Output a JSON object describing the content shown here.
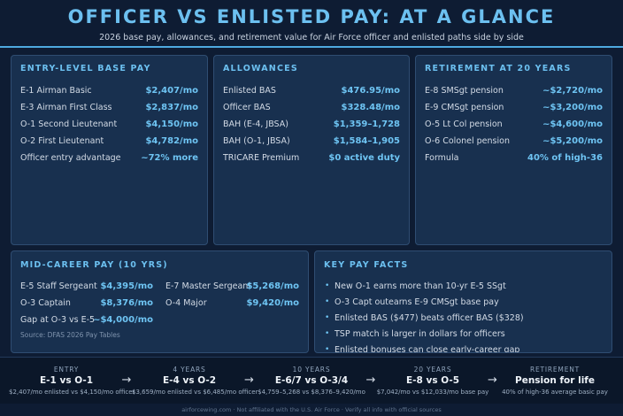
{
  "header": {
    "title": "OFFICER VS ENLISTED PAY: AT A GLANCE",
    "subtitle": "2026 base pay, allowances, and retirement value for Air Force officer and enlisted paths side by side"
  },
  "panels": [
    {
      "title": "ENTRY-LEVEL BASE PAY",
      "rows": [
        {
          "label": "E-1 Airman Basic",
          "value": "$2,407/mo"
        },
        {
          "label": "E-3 Airman First Class",
          "value": "$2,837/mo"
        },
        {
          "label": "O-1 Second Lieutenant",
          "value": "$4,150/mo"
        },
        {
          "label": "O-2 First Lieutenant",
          "value": "$4,782/mo"
        },
        {
          "label": "Officer entry advantage",
          "value": "~72% more"
        }
      ]
    },
    {
      "title": "ALLOWANCES",
      "rows": [
        {
          "label": "Enlisted BAS",
          "value": "$476.95/mo"
        },
        {
          "label": "Officer BAS",
          "value": "$328.48/mo"
        },
        {
          "label": "BAH (E-4, JBSA)",
          "value": "$1,359–1,728"
        },
        {
          "label": "BAH (O-1, JBSA)",
          "value": "$1,584–1,905"
        },
        {
          "label": "TRICARE Premium",
          "value": "$0 active duty"
        }
      ]
    },
    {
      "title": "RETIREMENT AT 20 YEARS",
      "rows": [
        {
          "label": "E-8 SMSgt pension",
          "value": "~$2,720/mo"
        },
        {
          "label": "E-9 CMSgt pension",
          "value": "~$3,200/mo"
        },
        {
          "label": "O-5 Lt Col pension",
          "value": "~$4,600/mo"
        },
        {
          "label": "O-6 Colonel pension",
          "value": "~$5,200/mo"
        },
        {
          "label": "Formula",
          "value": "40% of high-36"
        }
      ]
    }
  ],
  "mid_career": {
    "title": "MID-CAREER PAY (10 YRS)",
    "left": [
      {
        "label": "E-5 Staff Sergeant",
        "value": "$4,395/mo"
      },
      {
        "label": "O-3 Captain",
        "value": "$8,376/mo"
      },
      {
        "label": "Gap at O-3 vs E-5",
        "value": "~$4,000/mo"
      }
    ],
    "right": [
      {
        "label": "E-7 Master Sergeant",
        "value": "$5,268/mo"
      },
      {
        "label": "O-4 Major",
        "value": "$9,420/mo"
      }
    ],
    "source": "Source: DFAS 2026 Pay Tables"
  },
  "facts": {
    "title": "KEY PAY FACTS",
    "items": [
      "New O-1 earns more than 10-yr E-5 SSgt",
      "O-3 Capt outearns E-9 CMSgt base pay",
      "Enlisted BAS ($477) beats officer BAS ($328)",
      "TSP match is larger in dollars for officers",
      "Enlisted bonuses can close early-career gap"
    ]
  },
  "timeline": [
    {
      "label": "ENTRY",
      "title": "E-1 vs O-1",
      "detail": "$2,407/mo enlisted vs $4,150/mo officer"
    },
    {
      "label": "4 YEARS",
      "title": "E-4 vs O-2",
      "detail": "$3,659/mo enlisted vs $6,485/mo officer"
    },
    {
      "label": "10 YEARS",
      "title": "E-6/7 vs O-3/4",
      "detail": "$4,759–5,268 vs $8,376–9,420/mo"
    },
    {
      "label": "20 YEARS",
      "title": "E-8 vs O-5",
      "detail": "$7,042/mo vs $12,033/mo base pay"
    },
    {
      "label": "RETIREMENT",
      "title": "Pension for life",
      "detail": "40% of high-36 average basic pay"
    }
  ],
  "footer": "airforcewing.com · Not affiliated with the U.S. Air Force · Verify all info with official sources"
}
